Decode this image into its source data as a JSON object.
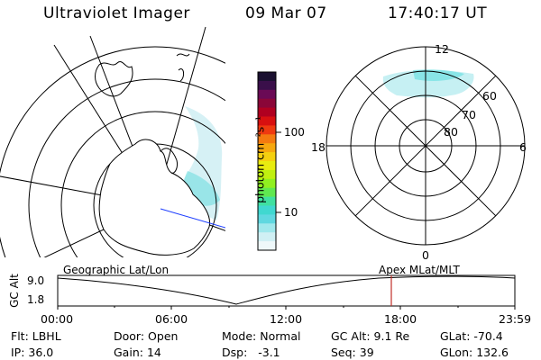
{
  "header": {
    "title": "Ultraviolet Imager",
    "date": "09 Mar 07",
    "time": "17:40:17 UT"
  },
  "colorbar": {
    "label": "photon cm⁻²s⁻¹",
    "ticks": [
      "100",
      "10"
    ],
    "colors": [
      "#1a1030",
      "#3a0f4a",
      "#6a0a55",
      "#8a0638",
      "#b00020",
      "#d81010",
      "#ef3a10",
      "#f47a10",
      "#f6a810",
      "#f4d010",
      "#e8ec10",
      "#c0f010",
      "#90f020",
      "#60e850",
      "#40e0a0",
      "#40d8d0",
      "#60d8e0",
      "#a0e8ec",
      "#d0f0f4",
      "#eef8fa"
    ]
  },
  "polar_plot": {
    "labels": {
      "top": "12",
      "bottom": "0",
      "left": "18",
      "right": "6"
    },
    "rings": [
      "80",
      "70",
      "60"
    ]
  },
  "timeline": {
    "ylabel": "GC Alt",
    "yticks": [
      "9.0",
      "1.8"
    ],
    "left_caption": "Geographic Lat/Lon",
    "right_caption": "Apex  MLat/MLT",
    "xticks": [
      "00:00",
      "06:00",
      "12:00",
      "18:00",
      "23:59"
    ],
    "marker_color": "#c0302a"
  },
  "info": {
    "row1": [
      {
        "label": "Flt:",
        "value": "LBHL"
      },
      {
        "label": "Door:",
        "value": "Open"
      },
      {
        "label": "Mode:",
        "value": "Normal"
      },
      {
        "label": "GC Alt:",
        "value": "9.1 Re"
      },
      {
        "label": "GLat:",
        "value": "-70.4"
      }
    ],
    "row2": [
      {
        "label": "IP:",
        "value": "36.0"
      },
      {
        "label": "Gain:",
        "value": "14"
      },
      {
        "label": "Dsp:",
        "value": "  -3.1"
      },
      {
        "label": "Seq:",
        "value": "39"
      },
      {
        "label": "GLon:",
        "value": "132.6"
      }
    ]
  }
}
